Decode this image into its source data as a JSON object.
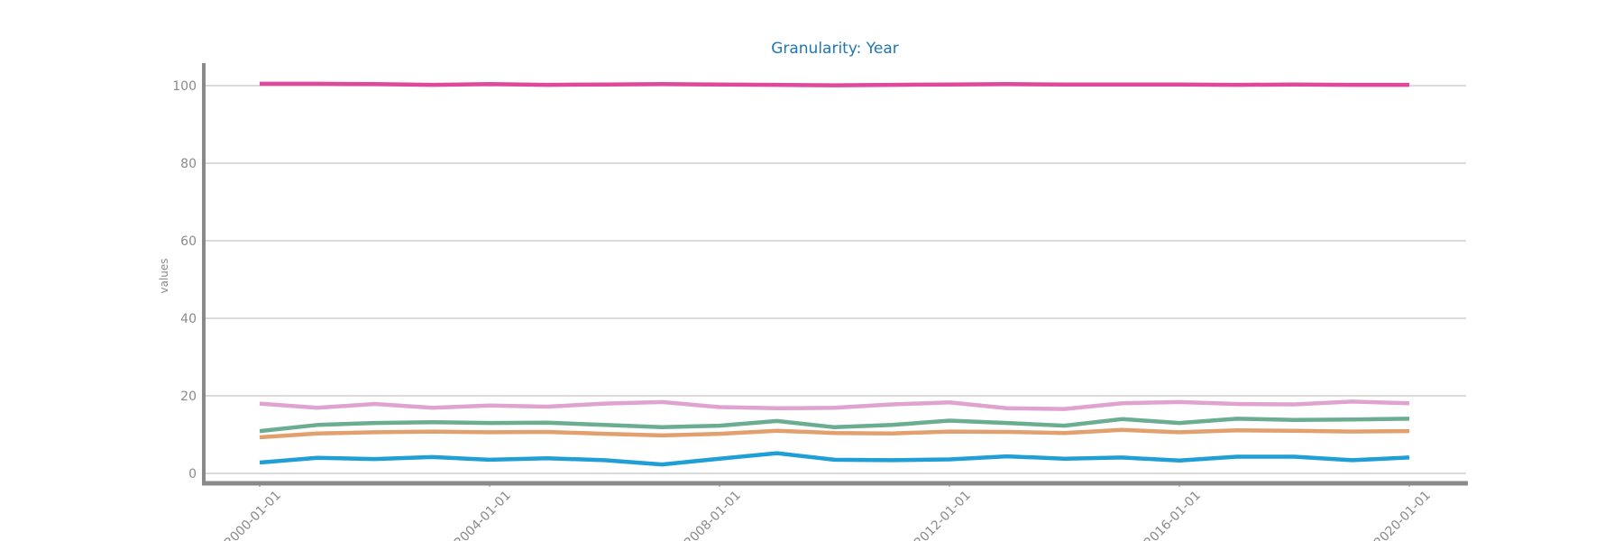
{
  "chart_data": {
    "type": "line",
    "title": "Granularity: Year",
    "xlabel": "",
    "ylabel": "values",
    "x": [
      "2000-01-01",
      "2001-01-01",
      "2002-01-01",
      "2003-01-01",
      "2004-01-01",
      "2005-01-01",
      "2006-01-01",
      "2007-01-01",
      "2008-01-01",
      "2009-01-01",
      "2010-01-01",
      "2011-01-01",
      "2012-01-01",
      "2013-01-01",
      "2014-01-01",
      "2015-01-01",
      "2016-01-01",
      "2017-01-01",
      "2018-01-01",
      "2019-01-01",
      "2020-01-01"
    ],
    "x_ticks": [
      "2000-01-01",
      "2004-01-01",
      "2008-01-01",
      "2012-01-01",
      "2016-01-01",
      "2020-01-01"
    ],
    "y_ticks": [
      0,
      20,
      40,
      60,
      80,
      100
    ],
    "ylim": [
      -2.5,
      105.5
    ],
    "grid": "horizontal",
    "legend": "none",
    "series": [
      {
        "color": "#e0489b",
        "values": [
          100.5,
          100.5,
          100.4,
          100.2,
          100.4,
          100.2,
          100.3,
          100.4,
          100.3,
          100.2,
          100.1,
          100.2,
          100.3,
          100.4,
          100.3,
          100.3,
          100.3,
          100.2,
          100.3,
          100.2,
          100.2
        ]
      },
      {
        "color": "#e0a3d0",
        "values": [
          18.0,
          16.9,
          17.9,
          16.9,
          17.5,
          17.2,
          18.0,
          18.4,
          17.1,
          16.8,
          16.9,
          17.8,
          18.3,
          16.8,
          16.6,
          18.1,
          18.4,
          17.9,
          17.8,
          18.5,
          18.1
        ]
      },
      {
        "color": "#6aad91",
        "values": [
          10.9,
          12.5,
          13.0,
          13.2,
          13.0,
          13.1,
          12.5,
          11.9,
          12.3,
          13.5,
          11.9,
          12.5,
          13.6,
          13.0,
          12.3,
          14.0,
          13.0,
          14.1,
          13.8,
          13.9,
          14.1
        ]
      },
      {
        "color": "#e2a06e",
        "values": [
          9.3,
          10.3,
          10.6,
          10.8,
          10.6,
          10.7,
          10.2,
          9.8,
          10.2,
          11.0,
          10.4,
          10.3,
          10.8,
          10.7,
          10.4,
          11.2,
          10.6,
          11.1,
          11.0,
          10.8,
          10.9
        ]
      },
      {
        "color": "#1f9fd6",
        "values": [
          2.8,
          4.0,
          3.7,
          4.2,
          3.5,
          3.9,
          3.4,
          2.3,
          3.8,
          5.2,
          3.5,
          3.4,
          3.6,
          4.4,
          3.8,
          4.1,
          3.3,
          4.3,
          4.3,
          3.4,
          4.1
        ]
      }
    ]
  }
}
